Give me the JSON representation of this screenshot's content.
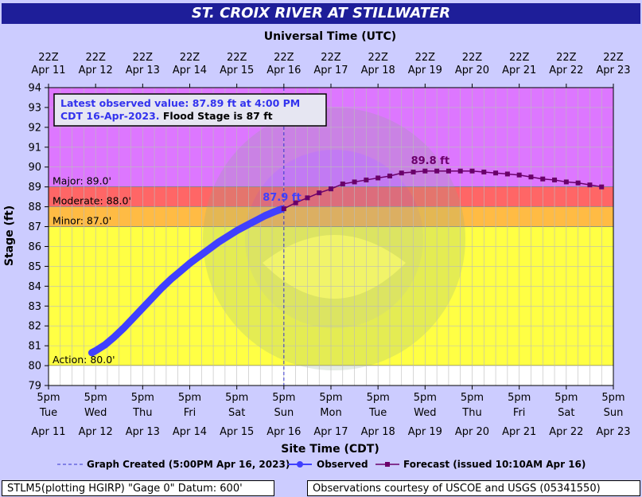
{
  "title": "ST. CROIX RIVER AT STILLWATER",
  "top_axis_title": "Universal Time (UTC)",
  "bottom_axis_title": "Site Time (CDT)",
  "y_axis_title": "Stage (ft)",
  "info_box": {
    "line1": "Latest observed value: 87.89 ft at 4:00 PM",
    "line2_blue": "CDT 16-Apr-2023.",
    "line2_black": " Flood Stage is 87 ft"
  },
  "legend": {
    "created": "Graph Created (5:00PM Apr 16, 2023)",
    "observed": "Observed",
    "forecast": "Forecast (issued 10:10AM Apr 16)"
  },
  "footer_left": "STLM5(plotting HGIRP) \"Gage 0\" Datum: 600'",
  "footer_right": "Observations courtesy of USCOE and USGS (05341550)",
  "colors": {
    "major": "#dd77ff",
    "moderate": "#ff6666",
    "minor": "#ffbb44",
    "action": "#ffff44",
    "normal": "#ffffff",
    "observed": "#4040ff",
    "forecast": "#6a006a",
    "title_bg": "#1e1e99"
  },
  "chart_data": {
    "type": "line",
    "x_unit": "days since Apr 11 00:00 CDT",
    "xlim": [
      0,
      12
    ],
    "ylim": [
      79,
      94
    ],
    "yticks": [
      79,
      80,
      81,
      82,
      83,
      84,
      85,
      86,
      87,
      88,
      89,
      90,
      91,
      92,
      93,
      94
    ],
    "grid": true,
    "top_ticks": [
      {
        "l1": "22Z",
        "l2": "Apr 11"
      },
      {
        "l1": "22Z",
        "l2": "Apr 12"
      },
      {
        "l1": "22Z",
        "l2": "Apr 13"
      },
      {
        "l1": "22Z",
        "l2": "Apr 14"
      },
      {
        "l1": "22Z",
        "l2": "Apr 15"
      },
      {
        "l1": "22Z",
        "l2": "Apr 16"
      },
      {
        "l1": "22Z",
        "l2": "Apr 17"
      },
      {
        "l1": "22Z",
        "l2": "Apr 18"
      },
      {
        "l1": "22Z",
        "l2": "Apr 19"
      },
      {
        "l1": "22Z",
        "l2": "Apr 20"
      },
      {
        "l1": "22Z",
        "l2": "Apr 21"
      },
      {
        "l1": "22Z",
        "l2": "Apr 22"
      },
      {
        "l1": "22Z",
        "l2": "Apr 23"
      }
    ],
    "bottom_ticks": [
      {
        "l1": "5pm",
        "l2": "Tue",
        "l3": "Apr 11"
      },
      {
        "l1": "5pm",
        "l2": "Wed",
        "l3": "Apr 12"
      },
      {
        "l1": "5pm",
        "l2": "Thu",
        "l3": "Apr 13"
      },
      {
        "l1": "5pm",
        "l2": "Fri",
        "l3": "Apr 14"
      },
      {
        "l1": "5pm",
        "l2": "Sat",
        "l3": "Apr 15"
      },
      {
        "l1": "5pm",
        "l2": "Sun",
        "l3": "Apr 16"
      },
      {
        "l1": "5pm",
        "l2": "Mon",
        "l3": "Apr 17"
      },
      {
        "l1": "5pm",
        "l2": "Tue",
        "l3": "Apr 18"
      },
      {
        "l1": "5pm",
        "l2": "Wed",
        "l3": "Apr 19"
      },
      {
        "l1": "5pm",
        "l2": "Thu",
        "l3": "Apr 20"
      },
      {
        "l1": "5pm",
        "l2": "Fri",
        "l3": "Apr 21"
      },
      {
        "l1": "5pm",
        "l2": "Sat",
        "l3": "Apr 22"
      },
      {
        "l1": "5pm",
        "l2": "Sun",
        "l3": "Apr 23"
      }
    ],
    "bands": [
      {
        "label": "Major: 89.0'",
        "from": 89,
        "to": 94,
        "color": "#dd77ff"
      },
      {
        "label": "Moderate: 88.0'",
        "from": 88,
        "to": 89,
        "color": "#ff6666"
      },
      {
        "label": "Minor: 87.0'",
        "from": 87,
        "to": 88,
        "color": "#ffbb44"
      },
      {
        "label": "Action: 80.0'",
        "from": 80,
        "to": 87,
        "color": "#ffff44"
      },
      {
        "label": "",
        "from": 79,
        "to": 80,
        "color": "#ffffff"
      }
    ],
    "created_x": 5.0,
    "observed": {
      "name": "Observed",
      "x": [
        0.92,
        1.0,
        1.2,
        1.4,
        1.6,
        1.8,
        2.0,
        2.2,
        2.4,
        2.6,
        2.8,
        3.0,
        3.2,
        3.4,
        3.6,
        3.8,
        4.0,
        4.2,
        4.4,
        4.6,
        4.8,
        4.96
      ],
      "y": [
        80.65,
        80.75,
        81.05,
        81.45,
        81.9,
        82.4,
        82.9,
        83.4,
        83.9,
        84.35,
        84.75,
        85.15,
        85.5,
        85.85,
        86.2,
        86.5,
        86.8,
        87.05,
        87.3,
        87.55,
        87.75,
        87.89
      ]
    },
    "forecast": {
      "name": "Forecast (issued 10:10AM Apr 16)",
      "x": [
        5.0,
        5.25,
        5.5,
        5.75,
        6.0,
        6.25,
        6.5,
        6.75,
        7.0,
        7.25,
        7.5,
        7.75,
        8.0,
        8.25,
        8.5,
        8.75,
        9.0,
        9.25,
        9.5,
        9.75,
        10.0,
        10.25,
        10.5,
        10.75,
        11.0,
        11.25,
        11.5,
        11.75
      ],
      "y": [
        87.9,
        88.2,
        88.45,
        88.7,
        88.9,
        89.15,
        89.25,
        89.35,
        89.45,
        89.55,
        89.7,
        89.75,
        89.8,
        89.8,
        89.8,
        89.8,
        89.8,
        89.75,
        89.7,
        89.65,
        89.6,
        89.5,
        89.4,
        89.35,
        89.25,
        89.2,
        89.1,
        89.0
      ]
    },
    "annotations": [
      {
        "text": "87.9 ft",
        "x": 4.55,
        "y": 88.3,
        "color": "#4040ff"
      },
      {
        "text": "89.8 ft",
        "x": 7.7,
        "y": 90.15,
        "color": "#6a006a"
      }
    ]
  }
}
